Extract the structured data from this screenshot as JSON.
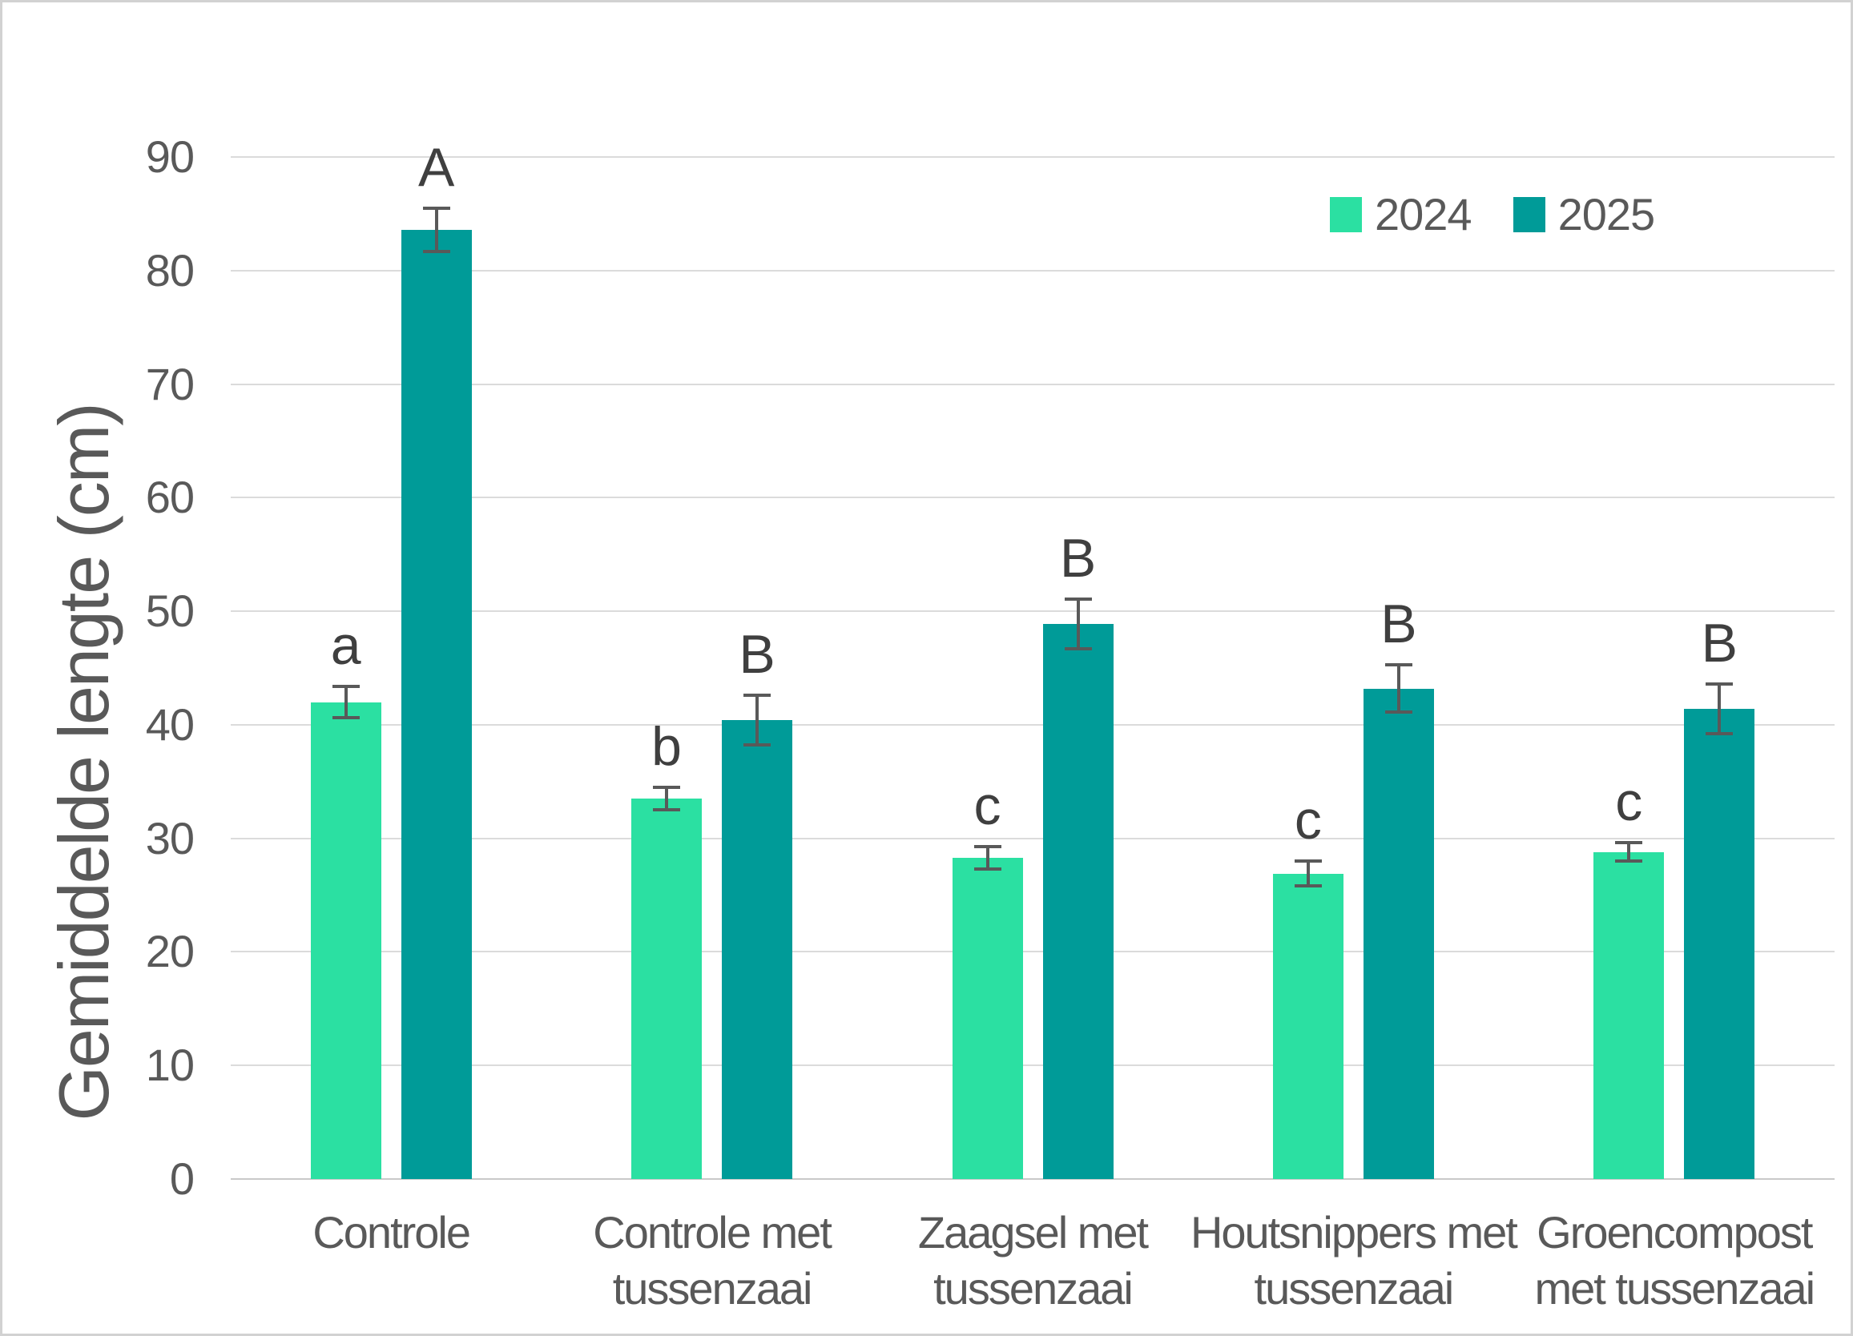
{
  "chart_data": {
    "type": "bar",
    "title": "",
    "ylabel": "Gemiddelde lengte (cm)",
    "xlabel": "",
    "ylim": [
      0,
      90
    ],
    "ytick_step": 10,
    "grid": true,
    "legend_position": "top-right",
    "categories": [
      "Controle",
      "Controle met tussenzaai",
      "Zaagsel met tussenzaai",
      "Houtsnippers met tussenzaai",
      "Groencompost met tussenzaai"
    ],
    "category_label_lines": [
      [
        "Controle"
      ],
      [
        "Controle met",
        "tussenzaai"
      ],
      [
        "Zaagsel met",
        "tussenzaai"
      ],
      [
        "Houtsnippers met",
        "tussenzaai"
      ],
      [
        "Groencompost",
        "met tussenzaai"
      ]
    ],
    "series": [
      {
        "name": "2024",
        "color": "#2BE0A2",
        "values": [
          42.0,
          33.5,
          28.3,
          26.9,
          28.8
        ],
        "errors": [
          1.4,
          1.0,
          1.0,
          1.1,
          0.8
        ],
        "letters": [
          "a",
          "b",
          "c",
          "c",
          "c"
        ]
      },
      {
        "name": "2025",
        "color": "#009B98",
        "values": [
          83.6,
          40.4,
          48.9,
          43.2,
          41.4
        ],
        "errors": [
          1.9,
          2.2,
          2.2,
          2.1,
          2.2
        ],
        "letters": [
          "A",
          "B",
          "B",
          "B",
          "B"
        ]
      }
    ],
    "colors": {
      "background": "#FFFFFF",
      "frame_border": "#D2D2D2",
      "gridline": "#DBDBDB",
      "axis_line": "#C9C9C9",
      "tick_text": "#595959",
      "axis_title_text": "#595959",
      "letter_text": "#3F3F3F",
      "error_bar": "#595959"
    }
  }
}
